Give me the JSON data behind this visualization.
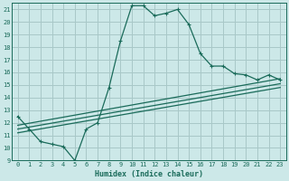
{
  "xlabel": "Humidex (Indice chaleur)",
  "bg_color": "#cce8e8",
  "grid_color": "#a8c8c8",
  "line_color": "#1a6b5a",
  "xlim": [
    -0.5,
    23.5
  ],
  "ylim": [
    9,
    21.5
  ],
  "xticks": [
    0,
    1,
    2,
    3,
    4,
    5,
    6,
    7,
    8,
    9,
    10,
    11,
    12,
    13,
    14,
    15,
    16,
    17,
    18,
    19,
    20,
    21,
    22,
    23
  ],
  "yticks": [
    9,
    10,
    11,
    12,
    13,
    14,
    15,
    16,
    17,
    18,
    19,
    20,
    21
  ],
  "curve1_x": [
    0,
    1,
    2,
    3,
    4,
    5,
    6,
    7,
    8,
    9,
    10,
    11,
    12,
    13,
    14,
    15,
    16,
    17,
    18,
    19,
    20,
    21,
    22,
    23
  ],
  "curve1_y": [
    12.5,
    11.5,
    10.5,
    10.3,
    10.1,
    9.0,
    11.5,
    12.0,
    14.8,
    18.5,
    21.3,
    21.3,
    20.5,
    20.7,
    21.0,
    19.8,
    17.5,
    16.5,
    16.5,
    15.9,
    15.8,
    15.4,
    15.8,
    15.4
  ],
  "curve2_x": [
    0,
    23
  ],
  "curve2_y": [
    11.8,
    15.5
  ],
  "curve3_x": [
    0,
    23
  ],
  "curve3_y": [
    11.5,
    15.1
  ],
  "curve4_x": [
    0,
    23
  ],
  "curve4_y": [
    11.2,
    14.8
  ],
  "font_size_tick": 5,
  "font_size_label": 6
}
